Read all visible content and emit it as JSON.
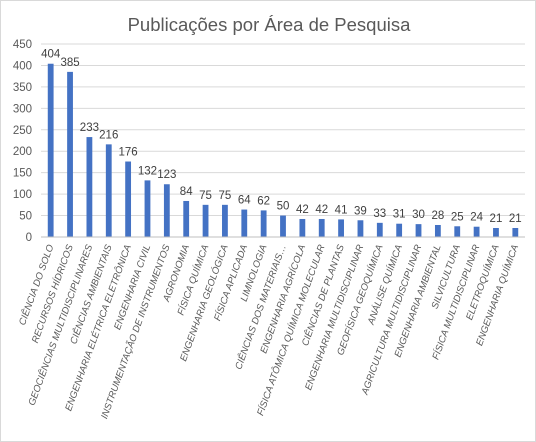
{
  "chart_data": {
    "type": "bar",
    "title": "Publicações por Área de Pesquisa",
    "xlabel": "",
    "ylabel": "",
    "ylim": [
      0,
      450
    ],
    "yticks": [
      0,
      50,
      100,
      150,
      200,
      250,
      300,
      350,
      400,
      450
    ],
    "grid": true,
    "legend": "none",
    "bar_color": "#4472c4",
    "categories": [
      "CIÊNCIA DO SOLO",
      "RECURSOS HÍDRICOS",
      "GEOCIÊNCIAS MULTIDISCIPLINARES",
      "CIÊNCIAS AMBIENTAIS",
      "ENGENHARIA ELÉTRICA ELETRÔNICA",
      "ENGENHARIA CIVIL",
      "INSTRUMENTAÇÃO DE INSTRUMENTOS",
      "AGRONOMIA",
      "FÍSICA QUÍMICA",
      "ENGENHARIA GEOLÓGICA",
      "FÍSICA APLICADA",
      "LIMNOLOGIA",
      "CIÊNCIAS DOS MATERIAIS…",
      "ENGENHARIA AGRÍCOLA",
      "FÍSICA ATÔMICA QUÍMICA MOLECULAR",
      "CIÊNCIAS DE PLANTAS",
      "ENGENHARIA MULTIDISCIPLINAR",
      "GEOFÍSICA GEOQUÍMICA",
      "ANÁLISE QUÍMICA",
      "AGRICULTURA MULTIDISCIPLINAR",
      "ENGENHARIA AMBIENTAL",
      "SILVICULTURA",
      "FÍSICA MULTIDISCIPLINAR",
      "ELETROQUÍMICA",
      "ENGENHARIA QUÍMICA"
    ],
    "values": [
      404,
      385,
      233,
      216,
      176,
      132,
      123,
      84,
      75,
      75,
      64,
      62,
      50,
      42,
      42,
      41,
      39,
      33,
      31,
      30,
      28,
      25,
      24,
      21,
      21
    ]
  }
}
